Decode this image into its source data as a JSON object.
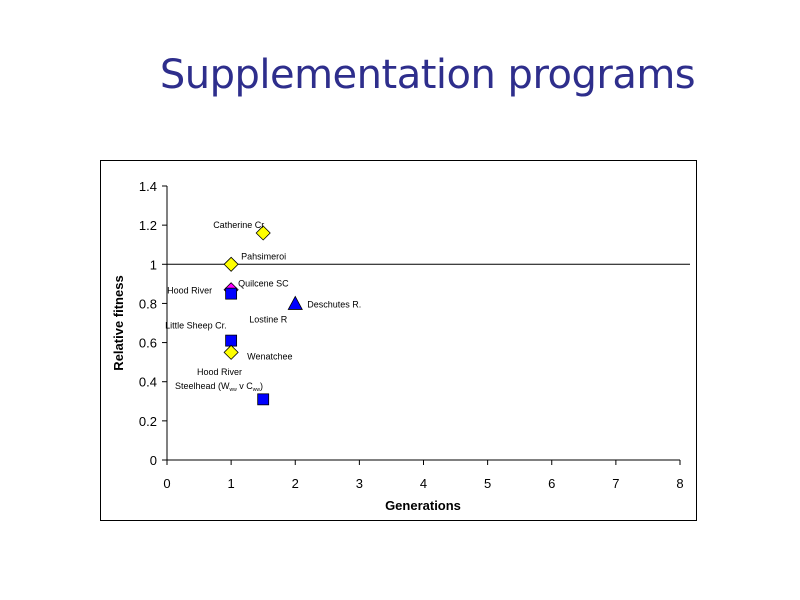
{
  "title": "Supplementation programs",
  "chart_data": {
    "type": "scatter",
    "xlabel": "Generations",
    "ylabel": "Relative fitness",
    "xlim": [
      0,
      8
    ],
    "ylim": [
      0,
      1.4
    ],
    "x_ticks": [
      "0",
      "1",
      "2",
      "3",
      "4",
      "5",
      "6",
      "7",
      "8"
    ],
    "y_ticks": [
      "0",
      "0.2",
      "0.4",
      "0.6",
      "0.8",
      "1",
      "1.2",
      "1.4"
    ],
    "reference_line": {
      "y": 1.0
    },
    "points": [
      {
        "label": "Catherine Cr",
        "x": 1.5,
        "y": 1.16,
        "marker": "diamond",
        "color": "#ffff00"
      },
      {
        "label": "Pahsimeroi",
        "x": 1.0,
        "y": 1.0,
        "marker": "diamond",
        "color": "#ffff00"
      },
      {
        "label": "Quilcene SC",
        "x": 1.0,
        "y": 0.87,
        "marker": "diamond",
        "color": "#ff00ff"
      },
      {
        "label": "Hood River",
        "x": 1.0,
        "y": 0.85,
        "marker": "square",
        "color": "#0000ff"
      },
      {
        "label": "Deschutes R.",
        "x": 2.0,
        "y": 0.8,
        "marker": "triangle",
        "color": "#0000ff"
      },
      {
        "label": "Lostine R",
        "x": 2.0,
        "y": 0.8,
        "marker": "none",
        "color": "#0000ff"
      },
      {
        "label": "Little Sheep Cr.",
        "x": 1.0,
        "y": 0.61,
        "marker": "square",
        "color": "#0000ff"
      },
      {
        "label": "Wenatchee",
        "x": 1.0,
        "y": 0.55,
        "marker": "diamond",
        "color": "#ffff00"
      },
      {
        "label": "Hood River",
        "x": 1.5,
        "y": 0.31,
        "marker": "square",
        "color": "#0000ff"
      }
    ],
    "annotation_hood_river_steelhead": {
      "line1": "Hood River",
      "line2_prefix": "Steelhead (W",
      "sub1": "ww",
      "middle": " v C",
      "sub2": "ww",
      "suffix": ")"
    },
    "colors": {
      "axis": "#000000",
      "marker_outline": "#000000",
      "title": "#2e2e8c"
    }
  }
}
